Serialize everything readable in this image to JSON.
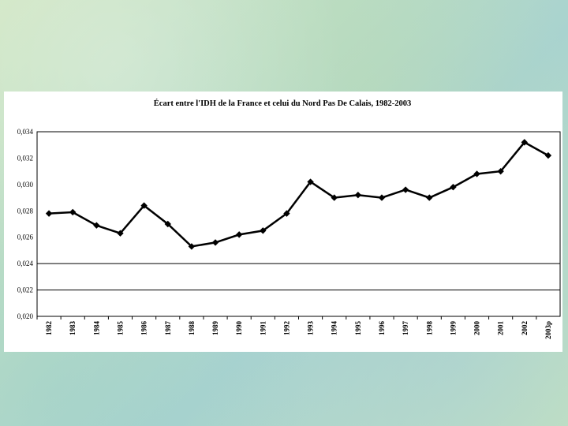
{
  "chart_data": {
    "type": "line",
    "title": "Écart entre l'IDH de la France et celui du Nord Pas De Calais, 1982-2003",
    "xlabel": "",
    "ylabel": "",
    "categories": [
      "1982",
      "1983",
      "1984",
      "1985",
      "1986",
      "1987",
      "1988",
      "1989",
      "1990",
      "1991",
      "1992",
      "1993",
      "1994",
      "1995",
      "1996",
      "1997",
      "1998",
      "1999",
      "2000",
      "2001",
      "2002",
      "2003p"
    ],
    "series": [
      {
        "values": [
          0.0278,
          0.0279,
          0.0269,
          0.0263,
          0.0284,
          0.027,
          0.0253,
          0.0256,
          0.0262,
          0.0265,
          0.0278,
          0.0302,
          0.029,
          0.0292,
          0.029,
          0.0296,
          0.029,
          0.0298,
          0.0308,
          0.031,
          0.0332,
          0.0322
        ],
        "color": "#000000"
      }
    ],
    "yticks": [
      "0,020",
      "0,022",
      "0,024",
      "0,026",
      "0,028",
      "0,030",
      "0,032",
      "0,034"
    ],
    "ylim": [
      0.02,
      0.034
    ],
    "grid": "horizontal gridlines at 0.020, 0.022, 0.024 only",
    "legend": "none"
  }
}
